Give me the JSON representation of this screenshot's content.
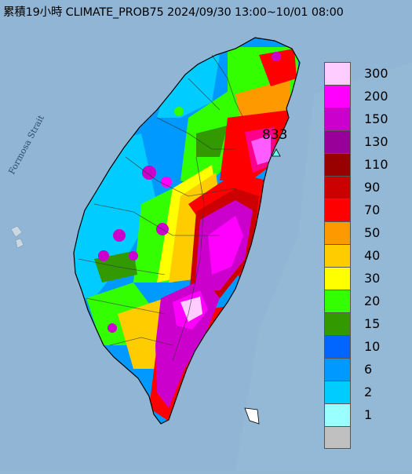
{
  "title": "累積19小時 CLIMATE_PROB75 2024/09/30 13:00~10/01 08:00",
  "map": {
    "sea_label": "Formosa Strait",
    "max_value_label": "833"
  },
  "legend": {
    "items": [
      {
        "label": "300",
        "color": "#ffccff"
      },
      {
        "label": "200",
        "color": "#ff00ff"
      },
      {
        "label": "150",
        "color": "#cc00cc"
      },
      {
        "label": "130",
        "color": "#990099"
      },
      {
        "label": "110",
        "color": "#990000"
      },
      {
        "label": "90",
        "color": "#cc0000"
      },
      {
        "label": "70",
        "color": "#ff0000"
      },
      {
        "label": "50",
        "color": "#ff9900"
      },
      {
        "label": "40",
        "color": "#ffcc00"
      },
      {
        "label": "30",
        "color": "#ffff00"
      },
      {
        "label": "20",
        "color": "#33ff00"
      },
      {
        "label": "15",
        "color": "#339900"
      },
      {
        "label": "10",
        "color": "#0066ff"
      },
      {
        "label": "6",
        "color": "#0099ff"
      },
      {
        "label": "2",
        "color": "#00ccff"
      },
      {
        "label": "1",
        "color": "#99ffff"
      },
      {
        "label": "",
        "color": "#c0c0c0"
      }
    ]
  }
}
